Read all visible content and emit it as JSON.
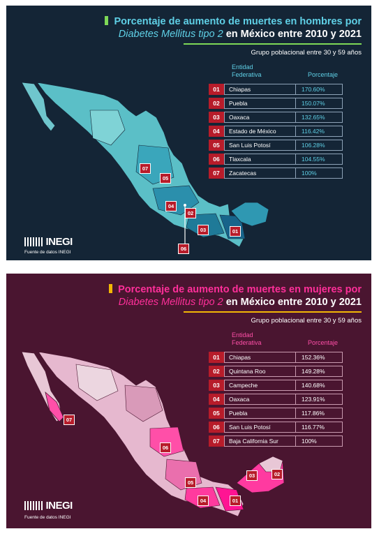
{
  "men": {
    "title_line1": "Porcentaje de aumento de muertes en hombres por",
    "title_italic": "Diabetes Mellitus tipo 2",
    "title_line2_rest": "en México entre 2010 y 2021",
    "group": "Grupo poblacional entre 30 y 59 años",
    "col_entity": "Entidad Federativa",
    "col_pct": "Porcentaje",
    "accent_bar": "#7ed957",
    "title_color": "#5fd0e6",
    "rows": [
      {
        "num": "01",
        "name": "Chiapas",
        "pct": "170.60%"
      },
      {
        "num": "02",
        "name": "Puebla",
        "pct": "150.07%"
      },
      {
        "num": "03",
        "name": "Oaxaca",
        "pct": "132.65%"
      },
      {
        "num": "04",
        "name": "Estado de México",
        "pct": "116.42%"
      },
      {
        "num": "05",
        "name": "San Luis Potosí",
        "pct": "106.28%"
      },
      {
        "num": "06",
        "name": "Tlaxcala",
        "pct": "104.55%"
      },
      {
        "num": "07",
        "name": "Zacatecas",
        "pct": "100%"
      }
    ],
    "logo": "INEGI",
    "source": "Fuente de datos INEGI"
  },
  "women": {
    "title_line1": "Porcentaje de aumento de muertes en mujeres por",
    "title_italic": "Diabetes Mellitus tipo 2",
    "title_line2_rest": "en México entre 2010 y 2021",
    "group": "Grupo poblacional entre 30 y 59 años",
    "col_entity": "Entidad Federativa",
    "col_pct": "Porcentaje",
    "accent_bar": "#f2b705",
    "title_color": "#ff2f9a",
    "rows": [
      {
        "num": "01",
        "name": "Chiapas",
        "pct": "152.36%"
      },
      {
        "num": "02",
        "name": "Quintana Roo",
        "pct": "149.28%"
      },
      {
        "num": "03",
        "name": "Campeche",
        "pct": "140.68%"
      },
      {
        "num": "04",
        "name": "Oaxaca",
        "pct": "123.91%"
      },
      {
        "num": "05",
        "name": "Puebla",
        "pct": "117.86%"
      },
      {
        "num": "06",
        "name": "San Luis Potosí",
        "pct": "116.77%"
      },
      {
        "num": "07",
        "name": "Baja California Sur",
        "pct": "100%"
      }
    ],
    "logo": "INEGI",
    "source": "Fuente de datos INEGI"
  }
}
